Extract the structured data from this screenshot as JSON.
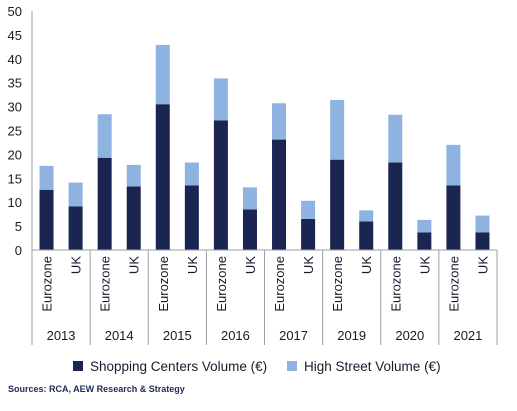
{
  "chart_data": {
    "type": "bar",
    "stacked": true,
    "ylim": [
      0,
      50
    ],
    "yticks": [
      0,
      5,
      10,
      15,
      20,
      25,
      30,
      35,
      40,
      45,
      50
    ],
    "groups": [
      "2013",
      "2014",
      "2015",
      "2016",
      "2017",
      "2019",
      "2020",
      "2021"
    ],
    "subcategories": [
      "Eurozone",
      "UK"
    ],
    "categories": [
      "Eurozone",
      "UK",
      "Eurozone",
      "UK",
      "Eurozone",
      "UK",
      "Eurozone",
      "UK",
      "Eurozone",
      "UK",
      "Eurozone",
      "UK",
      "Eurozone",
      "UK",
      "Eurozone",
      "UK"
    ],
    "series": [
      {
        "name": "Shopping Centers Volume (€)",
        "color": "#1b2552",
        "values": [
          12.6,
          9.1,
          19.3,
          13.3,
          30.5,
          13.5,
          27.1,
          8.5,
          23.1,
          6.5,
          18.9,
          6.0,
          18.3,
          3.7,
          13.5,
          3.7
        ]
      },
      {
        "name": "High Street Volume (€)",
        "color": "#8fb3e0",
        "values": [
          5.0,
          5.0,
          9.1,
          4.5,
          12.4,
          4.8,
          8.8,
          4.6,
          7.6,
          3.8,
          12.5,
          2.3,
          10.0,
          2.6,
          8.5,
          3.5
        ]
      }
    ],
    "legend_position": "bottom",
    "grid": false,
    "source": "Sources: RCA, AEW Research & Strategy"
  }
}
